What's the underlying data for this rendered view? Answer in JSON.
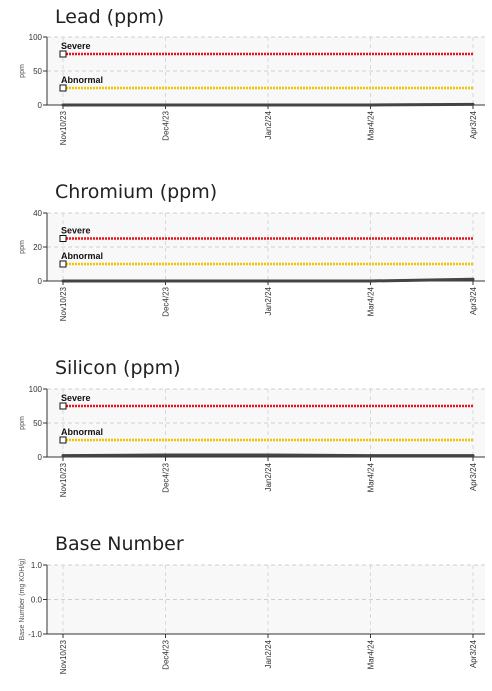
{
  "chart_data": [
    {
      "type": "line",
      "title": "Lead (ppm)",
      "ylabel": "ppm",
      "ylim": [
        0,
        100
      ],
      "yticks": [
        "0",
        "50",
        "100"
      ],
      "x": [
        "Nov10/23",
        "Dec4/23",
        "Jan2/24",
        "Mar4/24",
        "Apr3/24"
      ],
      "limits": [
        {
          "label": "Severe",
          "value": 75,
          "color": "#e8141c"
        },
        {
          "label": "Abnormal",
          "value": 25,
          "color": "#f5c400"
        }
      ],
      "series": [
        {
          "values": [
            0,
            0,
            0,
            0,
            1
          ]
        }
      ],
      "grid": true
    },
    {
      "type": "line",
      "title": "Chromium (ppm)",
      "ylabel": "ppm",
      "ylim": [
        0,
        40
      ],
      "yticks": [
        "0",
        "20",
        "40"
      ],
      "x": [
        "Nov10/23",
        "Dec4/23",
        "Jan2/24",
        "Mar4/24",
        "Apr3/24"
      ],
      "limits": [
        {
          "label": "Severe",
          "value": 25,
          "color": "#e8141c"
        },
        {
          "label": "Abnormal",
          "value": 10,
          "color": "#f5c400"
        }
      ],
      "series": [
        {
          "values": [
            0,
            0,
            0,
            0,
            1
          ]
        }
      ],
      "grid": true
    },
    {
      "type": "line",
      "title": "Silicon (ppm)",
      "ylabel": "ppm",
      "ylim": [
        0,
        100
      ],
      "yticks": [
        "0",
        "50",
        "100"
      ],
      "x": [
        "Nov10/23",
        "Dec4/23",
        "Jan2/24",
        "Mar4/24",
        "Apr3/24"
      ],
      "limits": [
        {
          "label": "Severe",
          "value": 75,
          "color": "#e8141c"
        },
        {
          "label": "Abnormal",
          "value": 25,
          "color": "#f5c400"
        }
      ],
      "series": [
        {
          "values": [
            2,
            3,
            3,
            2,
            2
          ]
        }
      ],
      "grid": true
    },
    {
      "type": "line",
      "title": "Base Number",
      "ylabel": "Base Number (mg KOH/g)",
      "ylim": [
        -1.0,
        1.0
      ],
      "yticks": [
        "-1.0",
        "0.0",
        "1.0"
      ],
      "x": [
        "Nov10/23",
        "Dec4/23",
        "Jan2/24",
        "Mar4/24",
        "Apr3/24"
      ],
      "limits": [],
      "series": [],
      "grid": true
    }
  ]
}
